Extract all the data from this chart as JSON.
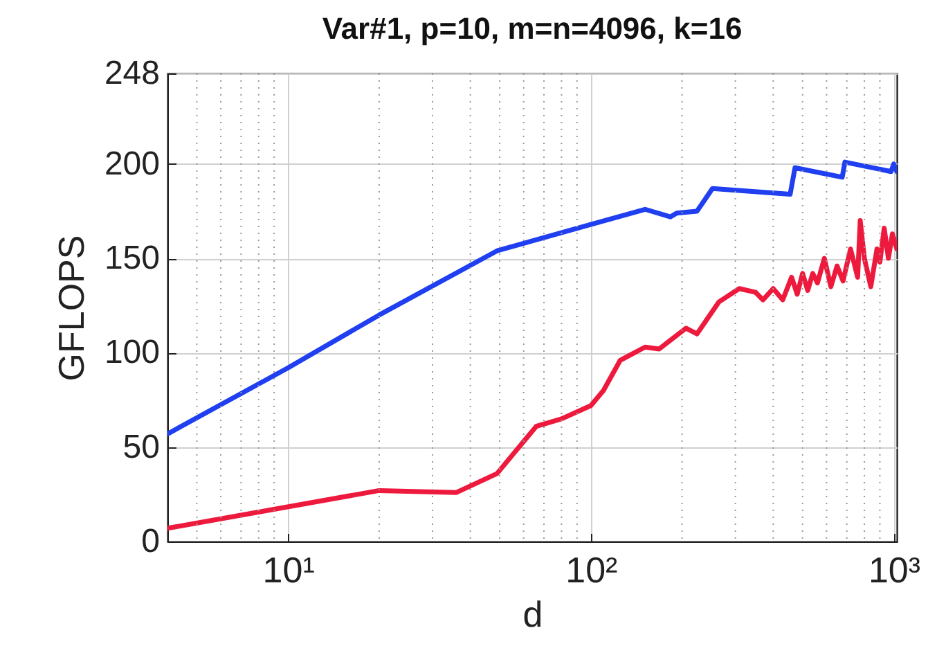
{
  "chart_data": {
    "type": "line",
    "title": "Var#1, p=10, m=n=4096, k=16",
    "xlabel": "d",
    "ylabel": "GFLOPS",
    "log": "x",
    "grid": true,
    "legend": false,
    "line_style": "solid",
    "marker": "none",
    "xlim": [
      4,
      1024
    ],
    "xticks": [
      {
        "value": 10,
        "label": "10¹"
      },
      {
        "value": 100,
        "label": "10²"
      },
      {
        "value": 1000,
        "label": "10³"
      }
    ],
    "ylim": [
      0,
      248
    ],
    "yticks": [
      0,
      50,
      100,
      150,
      200,
      248
    ],
    "series": [
      {
        "color": "#1f3ff0",
        "x": [
          4,
          10,
          20,
          49,
          100,
          151,
          183,
          192,
          224,
          252,
          455,
          472,
          676,
          690,
          980,
          1000,
          1024
        ],
        "values": [
          57,
          92,
          120,
          154,
          168,
          176,
          172,
          174,
          175,
          187,
          184,
          198,
          193,
          201,
          196,
          200,
          196
        ]
      },
      {
        "color": "#ee1a3e",
        "x": [
          4,
          20,
          36,
          49,
          66,
          80,
          100,
          110,
          125,
          151,
          168,
          206,
          224,
          265,
          309,
          350,
          370,
          400,
          430,
          460,
          480,
          500,
          520,
          540,
          560,
          590,
          620,
          650,
          680,
          720,
          760,
          775,
          800,
          840,
          880,
          900,
          930,
          960,
          990,
          1024
        ],
        "values": [
          7,
          27,
          26,
          36,
          61,
          65,
          72,
          80,
          96,
          103,
          102,
          113,
          110,
          127,
          134,
          132,
          128,
          134,
          128,
          140,
          131,
          142,
          133,
          142,
          137,
          150,
          135,
          146,
          138,
          155,
          140,
          170,
          150,
          135,
          155,
          148,
          166,
          150,
          163,
          155
        ]
      }
    ]
  }
}
